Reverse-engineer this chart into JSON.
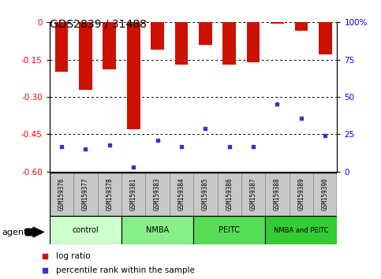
{
  "title": "GDS2839 / 31488",
  "samples": [
    "GSM159376",
    "GSM159377",
    "GSM159378",
    "GSM159381",
    "GSM159383",
    "GSM159384",
    "GSM159385",
    "GSM159386",
    "GSM159387",
    "GSM159388",
    "GSM159389",
    "GSM159390"
  ],
  "log_ratios": [
    -0.2,
    -0.27,
    -0.19,
    -0.43,
    -0.11,
    -0.17,
    -0.09,
    -0.17,
    -0.16,
    -0.004,
    -0.035,
    -0.13
  ],
  "percentile_ranks": [
    17,
    15,
    18,
    3,
    21,
    17,
    29,
    17,
    17,
    45,
    36,
    24
  ],
  "bar_color": "#cc1100",
  "dot_color": "#3333cc",
  "ylim_left": [
    -0.6,
    0.0
  ],
  "ylim_right": [
    0,
    100
  ],
  "yticks_left": [
    0,
    -0.15,
    -0.3,
    -0.45,
    -0.6
  ],
  "yticks_right": [
    0,
    25,
    50,
    75,
    100
  ],
  "group_configs": [
    {
      "label": "control",
      "start": 0,
      "end": 2,
      "color": "#ccffcc"
    },
    {
      "label": "NMBA",
      "start": 3,
      "end": 5,
      "color": "#88ee88"
    },
    {
      "label": "PEITC",
      "start": 6,
      "end": 8,
      "color": "#55dd55"
    },
    {
      "label": "NMBA and PEITC",
      "start": 9,
      "end": 11,
      "color": "#33cc33"
    }
  ],
  "label_bg": "#c8c8c8",
  "xlabel_agent": "agent",
  "legend_log": "log ratio",
  "legend_pct": "percentile rank within the sample"
}
